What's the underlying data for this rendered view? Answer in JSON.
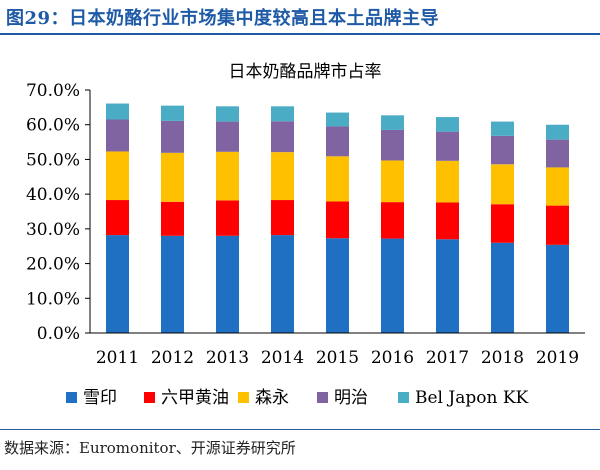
{
  "header": {
    "figure_title": "图29：日本奶酪行业市场集中度较高且本土品牌主导"
  },
  "footer": {
    "source": "数据来源：Euromonitor、开源证券研究所"
  },
  "colors": {
    "雪印": "#1f6fc2",
    "六甲黄油": "#ff0000",
    "森永": "#ffc000",
    "明治": "#8064a2",
    "Bel Japon KK": "#4bacc6"
  },
  "chart_data": {
    "type": "stacked-bar",
    "title": "日本奶酪品牌市占率",
    "categories": [
      "2011",
      "2012",
      "2013",
      "2014",
      "2015",
      "2016",
      "2017",
      "2018",
      "2019"
    ],
    "series": [
      {
        "name": "雪印",
        "values": [
          28.2,
          28.0,
          28.0,
          28.2,
          27.3,
          27.2,
          27.0,
          26.0,
          25.4
        ]
      },
      {
        "name": "六甲黄油",
        "values": [
          10.1,
          9.8,
          10.2,
          10.1,
          10.6,
          10.5,
          10.6,
          11.1,
          11.3
        ]
      },
      {
        "name": "森永",
        "values": [
          14.0,
          14.1,
          14.0,
          13.8,
          13.0,
          12.0,
          12.0,
          11.5,
          11.0
        ]
      },
      {
        "name": "明治",
        "values": [
          9.2,
          9.2,
          8.7,
          8.9,
          8.6,
          8.8,
          8.4,
          8.2,
          8.0
        ]
      },
      {
        "name": "Bel Japon KK",
        "values": [
          4.6,
          4.4,
          4.4,
          4.3,
          4.0,
          4.2,
          4.2,
          4.1,
          4.3
        ]
      }
    ],
    "y_ticks": [
      "0.0%",
      "10.0%",
      "20.0%",
      "30.0%",
      "40.0%",
      "50.0%",
      "60.0%",
      "70.0%"
    ],
    "ylim": [
      0,
      70
    ],
    "legend_position": "bottom",
    "grid": false
  }
}
